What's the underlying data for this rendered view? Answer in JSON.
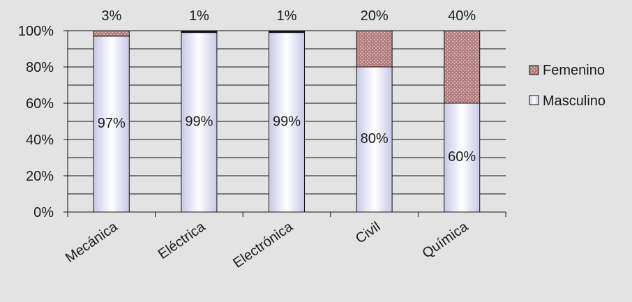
{
  "chart_data": {
    "type": "bar",
    "stacked": true,
    "percent": true,
    "categories": [
      "Mecánica",
      "Eléctrica",
      "Electrónica",
      "Civil",
      "Química"
    ],
    "series": [
      {
        "name": "Masculino",
        "values": [
          97,
          99,
          99,
          80,
          60
        ],
        "labels": [
          "97%",
          "99%",
          "99%",
          "80%",
          "60%"
        ]
      },
      {
        "name": "Femenino",
        "values": [
          3,
          1,
          1,
          20,
          40
        ],
        "labels": [
          "3%",
          "1%",
          "1%",
          "20%",
          "40%"
        ]
      }
    ],
    "y_ticks": [
      "0%",
      "20%",
      "40%",
      "60%",
      "80%",
      "100%"
    ],
    "ylim": [
      0,
      100
    ],
    "grid": true,
    "legend_position": "right",
    "colors": {
      "background": "#e3e3e3",
      "masculino_fill": "#c6c6e6",
      "femenino_fill": "#b27c7c",
      "femenino_dots": "#ead6d6",
      "axis": "#111111",
      "grid": "#111111"
    }
  }
}
